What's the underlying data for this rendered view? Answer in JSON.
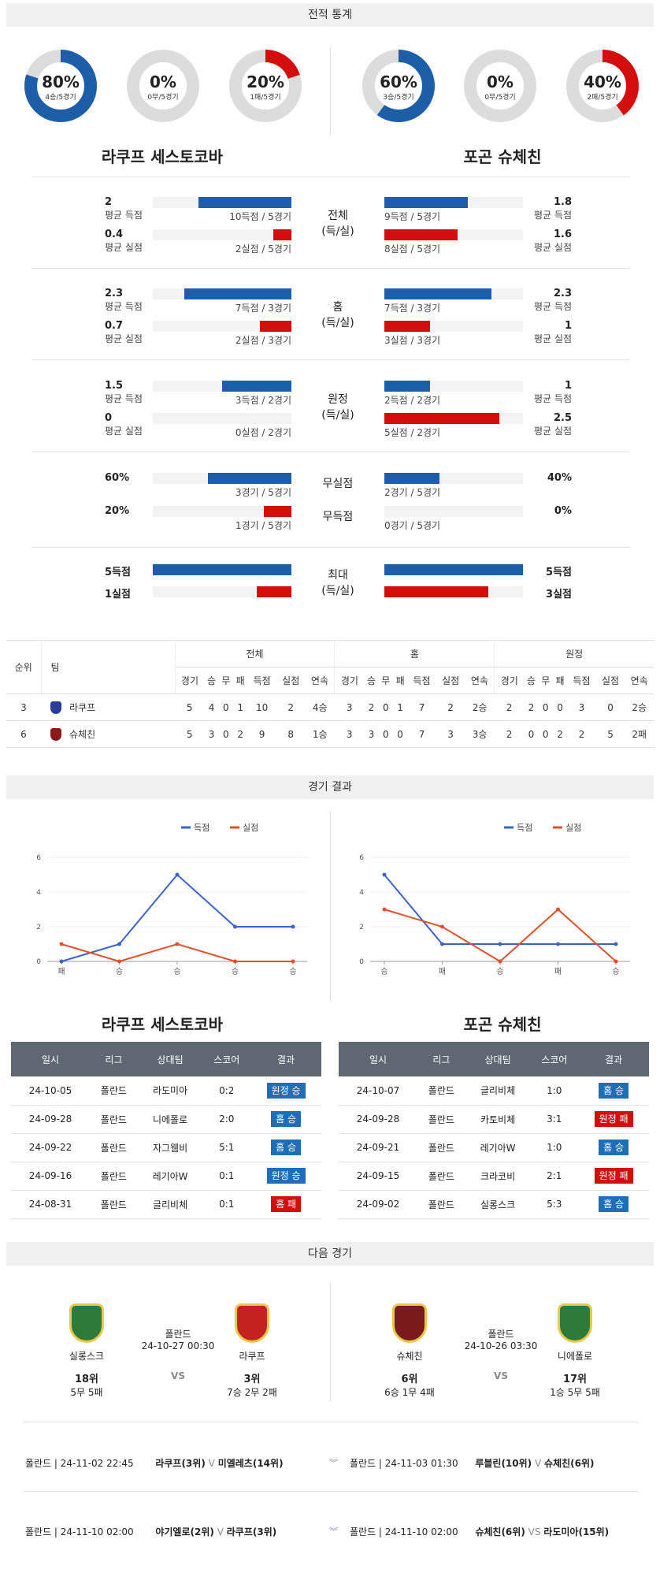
{
  "sections": {
    "stats": "전적 통계",
    "results": "경기 결과",
    "next": "다음 경기"
  },
  "donuts": [
    {
      "pct": "80%",
      "sub": "4승/5경기",
      "value": 0.8,
      "color": "#1c5fa8"
    },
    {
      "pct": "0%",
      "sub": "0무/5경기",
      "value": 0,
      "color": "#888888"
    },
    {
      "pct": "20%",
      "sub": "1패/5경기",
      "value": 0.2,
      "color": "#d40d0d"
    },
    {
      "pct": "60%",
      "sub": "3승/5경기",
      "value": 0.6,
      "color": "#1c5fa8"
    },
    {
      "pct": "0%",
      "sub": "0무/5경기",
      "value": 0,
      "color": "#888888"
    },
    {
      "pct": "40%",
      "sub": "2패/5경기",
      "value": 0.4,
      "color": "#d40d0d"
    }
  ],
  "teams": {
    "home": "라쿠프 세스토코바",
    "away": "포곤 슈체친"
  },
  "stat_groups": [
    {
      "mid": [
        "전체",
        "(득/실)"
      ],
      "rows": [
        {
          "lnum": "2",
          "llbl": "평균 득점",
          "lbar": "10득점 / 5경기",
          "lfrac": 0.67,
          "rnum": "1.8",
          "rlbl": "평균 득점",
          "rbar": "9득점 / 5경기",
          "rfrac": 0.6,
          "color": "blue"
        },
        {
          "lnum": "0.4",
          "llbl": "평균 실점",
          "lbar": "2실점 / 5경기",
          "lfrac": 0.13,
          "rnum": "1.6",
          "rlbl": "평균 실점",
          "rbar": "8실점 / 5경기",
          "rfrac": 0.53,
          "color": "red"
        }
      ]
    },
    {
      "mid": [
        "홈",
        "(득/실)"
      ],
      "rows": [
        {
          "lnum": "2.3",
          "llbl": "평균 득점",
          "lbar": "7득점 / 3경기",
          "lfrac": 0.77,
          "rnum": "2.3",
          "rlbl": "평균 득점",
          "rbar": "7득점 / 3경기",
          "rfrac": 0.77,
          "color": "blue"
        },
        {
          "lnum": "0.7",
          "llbl": "평균 실점",
          "lbar": "2실점 / 3경기",
          "lfrac": 0.23,
          "rnum": "1",
          "rlbl": "평균 실점",
          "rbar": "3실점 / 3경기",
          "rfrac": 0.33,
          "color": "red"
        }
      ]
    },
    {
      "mid": [
        "원정",
        "(득/실)"
      ],
      "rows": [
        {
          "lnum": "1.5",
          "llbl": "평균 득점",
          "lbar": "3득점 / 2경기",
          "lfrac": 0.5,
          "rnum": "1",
          "rlbl": "평균 득점",
          "rbar": "2득점 / 2경기",
          "rfrac": 0.33,
          "color": "blue"
        },
        {
          "lnum": "0",
          "llbl": "평균 실점",
          "lbar": "0실점 / 2경기",
          "lfrac": 0,
          "rnum": "2.5",
          "rlbl": "평균 실점",
          "rbar": "5실점 / 2경기",
          "rfrac": 0.83,
          "color": "red"
        }
      ]
    }
  ],
  "clean": {
    "rows": [
      {
        "mid": "무실점",
        "lnum": "60%",
        "lbar": "3경기 / 5경기",
        "lfrac": 0.6,
        "rnum": "40%",
        "rbar": "2경기 / 5경기",
        "rfrac": 0.4,
        "color": "blue"
      },
      {
        "mid": "무득점",
        "lnum": "20%",
        "lbar": "1경기 / 5경기",
        "lfrac": 0.2,
        "rnum": "0%",
        "rbar": "0경기 / 5경기",
        "rfrac": 0,
        "color": "red"
      }
    ]
  },
  "max": {
    "mid": [
      "최대",
      "(득/실)"
    ],
    "rows": [
      {
        "lnum": "5득점",
        "lfrac": 1,
        "rnum": "5득점",
        "rfrac": 1,
        "color": "blue"
      },
      {
        "lnum": "1실점",
        "lfrac": 0.25,
        "rnum": "3실점",
        "rfrac": 0.75,
        "color": "red"
      }
    ]
  },
  "standings": {
    "groups": [
      "전체",
      "홈",
      "원정"
    ],
    "head": [
      "순위",
      "팀"
    ],
    "cols": [
      "경기",
      "승",
      "무",
      "패",
      "득점",
      "실점",
      "연속"
    ],
    "rows": [
      {
        "rank": "3",
        "team": "라쿠프",
        "logo": "#2a3f9c",
        "all": [
          "5",
          "4",
          "0",
          "1",
          "10",
          "2",
          "4승"
        ],
        "home": [
          "3",
          "2",
          "0",
          "1",
          "7",
          "2",
          "2승"
        ],
        "away": [
          "2",
          "2",
          "0",
          "0",
          "3",
          "0",
          "2승"
        ]
      },
      {
        "rank": "6",
        "team": "슈체친",
        "logo": "#8b1a1a",
        "all": [
          "5",
          "3",
          "0",
          "2",
          "9",
          "8",
          "1승"
        ],
        "home": [
          "3",
          "3",
          "0",
          "0",
          "7",
          "3",
          "3승"
        ],
        "away": [
          "2",
          "0",
          "0",
          "2",
          "2",
          "5",
          "2패"
        ]
      }
    ]
  },
  "chart_data": [
    {
      "type": "line",
      "categories": [
        "패",
        "승",
        "승",
        "승",
        "승"
      ],
      "ylim": [
        0,
        6
      ],
      "yticks": [
        0,
        2,
        4,
        6
      ],
      "series": [
        {
          "name": "득점",
          "color": "#3a62c9",
          "values": [
            0,
            1,
            5,
            2,
            2
          ]
        },
        {
          "name": "실점",
          "color": "#e0502a",
          "values": [
            1,
            0,
            1,
            0,
            0
          ]
        }
      ]
    },
    {
      "type": "line",
      "categories": [
        "승",
        "패",
        "승",
        "패",
        "승"
      ],
      "ylim": [
        0,
        6
      ],
      "yticks": [
        0,
        2,
        4,
        6
      ],
      "series": [
        {
          "name": "득점",
          "color": "#3a62c9",
          "values": [
            5,
            1,
            1,
            1,
            1
          ]
        },
        {
          "name": "실점",
          "color": "#e0502a",
          "values": [
            3,
            2,
            0,
            3,
            0
          ]
        }
      ]
    }
  ],
  "results_head": [
    "일시",
    "리그",
    "상대팀",
    "스코어",
    "결과"
  ],
  "results_home": [
    [
      "24-10-05",
      "폴란드",
      "라도미아",
      "0:2",
      "원정 승",
      "win"
    ],
    [
      "24-09-28",
      "폴란드",
      "니에폴로",
      "2:0",
      "홈 승",
      "win"
    ],
    [
      "24-09-22",
      "폴란드",
      "자그웸비",
      "5:1",
      "홈 승",
      "win"
    ],
    [
      "24-09-16",
      "폴란드",
      "레기아W",
      "0:1",
      "원정 승",
      "win"
    ],
    [
      "24-08-31",
      "폴란드",
      "글리비체",
      "0:1",
      "홈 패",
      "loss"
    ]
  ],
  "results_away": [
    [
      "24-10-07",
      "폴란드",
      "글리비체",
      "1:0",
      "홈 승",
      "win"
    ],
    [
      "24-09-28",
      "폴란드",
      "카토비체",
      "3:1",
      "원정 패",
      "loss"
    ],
    [
      "24-09-21",
      "폴란드",
      "레기아W",
      "1:0",
      "홈 승",
      "win"
    ],
    [
      "24-09-15",
      "폴란드",
      "크라코비",
      "2:1",
      "원정 패",
      "loss"
    ],
    [
      "24-09-02",
      "폴란드",
      "실롱스크",
      "5:3",
      "홈 승",
      "win"
    ]
  ],
  "next": [
    {
      "league": "폴란드",
      "date": "24-10-27 00:30",
      "vs": "VS",
      "t1": {
        "name": "실롱스크",
        "rank": "18위",
        "rec": "5무 5패"
      },
      "t2": {
        "name": "라쿠프",
        "rank": "3위",
        "rec": "7승 2무 2패"
      }
    },
    {
      "league": "폴란드",
      "date": "24-10-26 03:30",
      "vs": "VS",
      "t1": {
        "name": "슈체친",
        "rank": "6위",
        "rec": "6승 1무 4패"
      },
      "t2": {
        "name": "니에폴로",
        "rank": "17위",
        "rec": "1승 5무 5패"
      }
    }
  ],
  "schedule": [
    {
      "l": "폴란드 | 24-11-02 22:45",
      "m": "라쿠프(3위)",
      "v": "V",
      "o": "미엘레츠(14위)",
      "r": "폴란드 | 24-11-03 01:30",
      "rm": "루블린(10위)",
      "rv": "V",
      "ro": "슈체친(6위)"
    },
    {
      "l": "폴란드 | 24-11-10 02:00",
      "m": "야기엘로(2위)",
      "v": "V",
      "o": "라쿠프(3위)",
      "r": "폴란드 | 24-11-10 02:00",
      "rm": "슈체친(6위)",
      "rv": "VS",
      "ro": "라도미아(15위)"
    }
  ]
}
